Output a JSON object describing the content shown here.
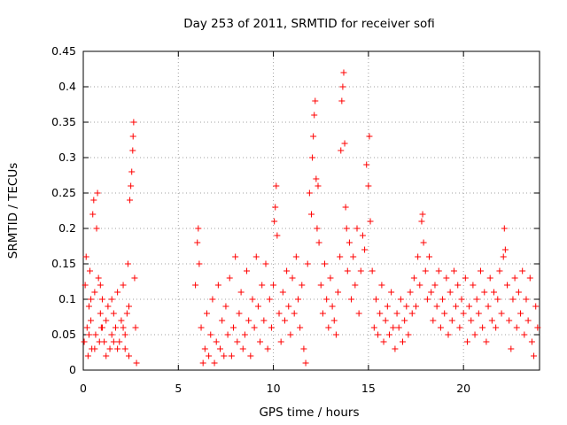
{
  "chart_data": {
    "type": "scatter",
    "title": "Day 253 of 2011, SRMTID for receiver sofi",
    "xlabel": "GPS time / hours",
    "ylabel": "SRMTID / TECUs",
    "xlim": [
      0,
      24
    ],
    "ylim": [
      0,
      0.45
    ],
    "x_ticks": [
      0,
      5,
      10,
      15,
      20
    ],
    "y_ticks": [
      0,
      0.05,
      0.1,
      0.15,
      0.2,
      0.25,
      0.3,
      0.35,
      0.4,
      0.45
    ],
    "x_tick_labels": [
      "0",
      "5",
      "10",
      "15",
      "20"
    ],
    "y_tick_labels": [
      "0",
      "0.05",
      "0.1",
      "0.15",
      "0.2",
      "0.25",
      "0.3",
      "0.35",
      "0.4",
      "0.45"
    ],
    "grid": true,
    "marker": "+",
    "color": "#ff0000",
    "series": [
      {
        "name": "SRMTID",
        "points": [
          [
            0.05,
            0.04
          ],
          [
            0.1,
            0.12
          ],
          [
            0.15,
            0.16
          ],
          [
            0.2,
            0.06
          ],
          [
            0.25,
            0.02
          ],
          [
            0.3,
            0.09
          ],
          [
            0.35,
            0.14
          ],
          [
            0.4,
            0.07
          ],
          [
            0.45,
            0.03
          ],
          [
            0.5,
            0.22
          ],
          [
            0.55,
            0.24
          ],
          [
            0.6,
            0.11
          ],
          [
            0.65,
            0.05
          ],
          [
            0.7,
            0.2
          ],
          [
            0.75,
            0.25
          ],
          [
            0.8,
            0.13
          ],
          [
            0.85,
            0.04
          ],
          [
            0.9,
            0.08
          ],
          [
            0.95,
            0.06
          ],
          [
            1.0,
            0.1
          ],
          [
            1.1,
            0.04
          ],
          [
            1.2,
            0.07
          ],
          [
            1.3,
            0.09
          ],
          [
            1.4,
            0.03
          ],
          [
            1.5,
            0.05
          ],
          [
            1.6,
            0.08
          ],
          [
            1.7,
            0.06
          ],
          [
            1.8,
            0.11
          ],
          [
            1.9,
            0.04
          ],
          [
            2.0,
            0.07
          ],
          [
            2.1,
            0.12
          ],
          [
            2.2,
            0.05
          ],
          [
            2.3,
            0.08
          ],
          [
            2.35,
            0.15
          ],
          [
            2.4,
            0.02
          ],
          [
            2.45,
            0.24
          ],
          [
            2.5,
            0.26
          ],
          [
            2.55,
            0.28
          ],
          [
            2.6,
            0.31
          ],
          [
            2.62,
            0.33
          ],
          [
            2.65,
            0.35
          ],
          [
            2.7,
            0.13
          ],
          [
            2.75,
            0.06
          ],
          [
            2.8,
            0.01
          ],
          [
            0.3,
            0.05
          ],
          [
            0.6,
            0.03
          ],
          [
            0.9,
            0.12
          ],
          [
            1.2,
            0.02
          ],
          [
            1.5,
            0.1
          ],
          [
            1.8,
            0.03
          ],
          [
            2.1,
            0.06
          ],
          [
            2.4,
            0.09
          ],
          [
            0.4,
            0.1
          ],
          [
            1.0,
            0.06
          ],
          [
            1.6,
            0.04
          ],
          [
            2.2,
            0.03
          ],
          [
            5.9,
            0.12
          ],
          [
            6.0,
            0.18
          ],
          [
            6.05,
            0.2
          ],
          [
            6.1,
            0.15
          ],
          [
            6.2,
            0.06
          ],
          [
            6.3,
            0.01
          ],
          [
            6.4,
            0.03
          ],
          [
            6.5,
            0.08
          ],
          [
            6.6,
            0.02
          ],
          [
            6.7,
            0.05
          ],
          [
            6.8,
            0.1
          ],
          [
            6.9,
            0.01
          ],
          [
            7.0,
            0.04
          ],
          [
            7.1,
            0.12
          ],
          [
            7.2,
            0.03
          ],
          [
            7.3,
            0.07
          ],
          [
            7.4,
            0.02
          ],
          [
            7.5,
            0.09
          ],
          [
            7.6,
            0.05
          ],
          [
            7.7,
            0.13
          ],
          [
            7.8,
            0.02
          ],
          [
            7.9,
            0.06
          ],
          [
            8.0,
            0.16
          ],
          [
            8.1,
            0.04
          ],
          [
            8.2,
            0.08
          ],
          [
            8.3,
            0.11
          ],
          [
            8.4,
            0.03
          ],
          [
            8.5,
            0.05
          ],
          [
            8.6,
            0.14
          ],
          [
            8.7,
            0.07
          ],
          [
            8.8,
            0.02
          ],
          [
            8.9,
            0.1
          ],
          [
            9.0,
            0.06
          ],
          [
            9.1,
            0.16
          ],
          [
            9.2,
            0.09
          ],
          [
            9.3,
            0.04
          ],
          [
            9.4,
            0.12
          ],
          [
            9.5,
            0.07
          ],
          [
            9.6,
            0.15
          ],
          [
            9.7,
            0.03
          ],
          [
            9.8,
            0.1
          ],
          [
            9.9,
            0.06
          ],
          [
            10.0,
            0.12
          ],
          [
            10.05,
            0.21
          ],
          [
            10.1,
            0.23
          ],
          [
            10.15,
            0.26
          ],
          [
            10.2,
            0.19
          ],
          [
            10.3,
            0.08
          ],
          [
            10.4,
            0.04
          ],
          [
            10.5,
            0.11
          ],
          [
            10.6,
            0.07
          ],
          [
            10.7,
            0.14
          ],
          [
            10.8,
            0.09
          ],
          [
            10.9,
            0.05
          ],
          [
            11.0,
            0.13
          ],
          [
            11.1,
            0.08
          ],
          [
            11.2,
            0.16
          ],
          [
            11.3,
            0.1
          ],
          [
            11.4,
            0.06
          ],
          [
            11.5,
            0.12
          ],
          [
            11.6,
            0.03
          ],
          [
            11.7,
            0.01
          ],
          [
            11.8,
            0.15
          ],
          [
            11.9,
            0.25
          ],
          [
            12.0,
            0.22
          ],
          [
            12.05,
            0.3
          ],
          [
            12.1,
            0.33
          ],
          [
            12.15,
            0.36
          ],
          [
            12.2,
            0.38
          ],
          [
            12.25,
            0.27
          ],
          [
            12.3,
            0.2
          ],
          [
            12.35,
            0.26
          ],
          [
            12.4,
            0.18
          ],
          [
            12.5,
            0.12
          ],
          [
            12.6,
            0.08
          ],
          [
            12.7,
            0.15
          ],
          [
            12.8,
            0.1
          ],
          [
            12.9,
            0.06
          ],
          [
            13.0,
            0.13
          ],
          [
            13.1,
            0.09
          ],
          [
            13.2,
            0.07
          ],
          [
            13.3,
            0.05
          ],
          [
            13.4,
            0.11
          ],
          [
            13.5,
            0.16
          ],
          [
            13.55,
            0.31
          ],
          [
            13.6,
            0.38
          ],
          [
            13.65,
            0.4
          ],
          [
            13.7,
            0.42
          ],
          [
            13.75,
            0.32
          ],
          [
            13.8,
            0.23
          ],
          [
            13.85,
            0.2
          ],
          [
            13.9,
            0.14
          ],
          [
            14.0,
            0.18
          ],
          [
            14.1,
            0.1
          ],
          [
            14.2,
            0.16
          ],
          [
            14.3,
            0.12
          ],
          [
            14.4,
            0.2
          ],
          [
            14.5,
            0.08
          ],
          [
            14.6,
            0.14
          ],
          [
            14.7,
            0.19
          ],
          [
            14.8,
            0.17
          ],
          [
            14.9,
            0.29
          ],
          [
            15.0,
            0.26
          ],
          [
            15.05,
            0.33
          ],
          [
            15.1,
            0.21
          ],
          [
            15.2,
            0.14
          ],
          [
            15.3,
            0.06
          ],
          [
            15.4,
            0.1
          ],
          [
            15.5,
            0.05
          ],
          [
            15.6,
            0.08
          ],
          [
            15.7,
            0.12
          ],
          [
            15.8,
            0.04
          ],
          [
            15.9,
            0.07
          ],
          [
            16.0,
            0.09
          ],
          [
            16.1,
            0.05
          ],
          [
            16.2,
            0.11
          ],
          [
            16.3,
            0.06
          ],
          [
            16.4,
            0.03
          ],
          [
            16.5,
            0.08
          ],
          [
            16.6,
            0.06
          ],
          [
            16.7,
            0.1
          ],
          [
            16.8,
            0.04
          ],
          [
            16.9,
            0.07
          ],
          [
            17.0,
            0.09
          ],
          [
            17.1,
            0.05
          ],
          [
            17.2,
            0.11
          ],
          [
            17.3,
            0.08
          ],
          [
            17.4,
            0.13
          ],
          [
            17.5,
            0.09
          ],
          [
            17.6,
            0.16
          ],
          [
            17.7,
            0.12
          ],
          [
            17.8,
            0.21
          ],
          [
            17.85,
            0.22
          ],
          [
            17.9,
            0.18
          ],
          [
            18.0,
            0.14
          ],
          [
            18.1,
            0.1
          ],
          [
            18.2,
            0.16
          ],
          [
            18.3,
            0.11
          ],
          [
            18.4,
            0.07
          ],
          [
            18.5,
            0.12
          ],
          [
            18.6,
            0.09
          ],
          [
            18.7,
            0.14
          ],
          [
            18.8,
            0.06
          ],
          [
            18.9,
            0.1
          ],
          [
            19.0,
            0.08
          ],
          [
            19.1,
            0.13
          ],
          [
            19.2,
            0.05
          ],
          [
            19.3,
            0.11
          ],
          [
            19.4,
            0.07
          ],
          [
            19.5,
            0.14
          ],
          [
            19.6,
            0.09
          ],
          [
            19.7,
            0.12
          ],
          [
            19.8,
            0.06
          ],
          [
            19.9,
            0.1
          ],
          [
            20.0,
            0.08
          ],
          [
            20.1,
            0.13
          ],
          [
            20.2,
            0.04
          ],
          [
            20.3,
            0.09
          ],
          [
            20.4,
            0.07
          ],
          [
            20.5,
            0.12
          ],
          [
            20.6,
            0.05
          ],
          [
            20.7,
            0.1
          ],
          [
            20.8,
            0.08
          ],
          [
            20.9,
            0.14
          ],
          [
            21.0,
            0.06
          ],
          [
            21.1,
            0.11
          ],
          [
            21.2,
            0.04
          ],
          [
            21.3,
            0.09
          ],
          [
            21.4,
            0.13
          ],
          [
            21.5,
            0.07
          ],
          [
            21.6,
            0.11
          ],
          [
            21.7,
            0.06
          ],
          [
            21.8,
            0.1
          ],
          [
            21.9,
            0.14
          ],
          [
            22.0,
            0.08
          ],
          [
            22.1,
            0.16
          ],
          [
            22.15,
            0.2
          ],
          [
            22.2,
            0.17
          ],
          [
            22.3,
            0.12
          ],
          [
            22.4,
            0.07
          ],
          [
            22.5,
            0.03
          ],
          [
            22.6,
            0.1
          ],
          [
            22.7,
            0.13
          ],
          [
            22.8,
            0.06
          ],
          [
            22.9,
            0.11
          ],
          [
            23.0,
            0.08
          ],
          [
            23.1,
            0.14
          ],
          [
            23.2,
            0.05
          ],
          [
            23.3,
            0.1
          ],
          [
            23.4,
            0.07
          ],
          [
            23.5,
            0.13
          ],
          [
            23.6,
            0.04
          ],
          [
            23.7,
            0.02
          ],
          [
            23.8,
            0.09
          ],
          [
            23.9,
            0.06
          ]
        ]
      }
    ]
  }
}
